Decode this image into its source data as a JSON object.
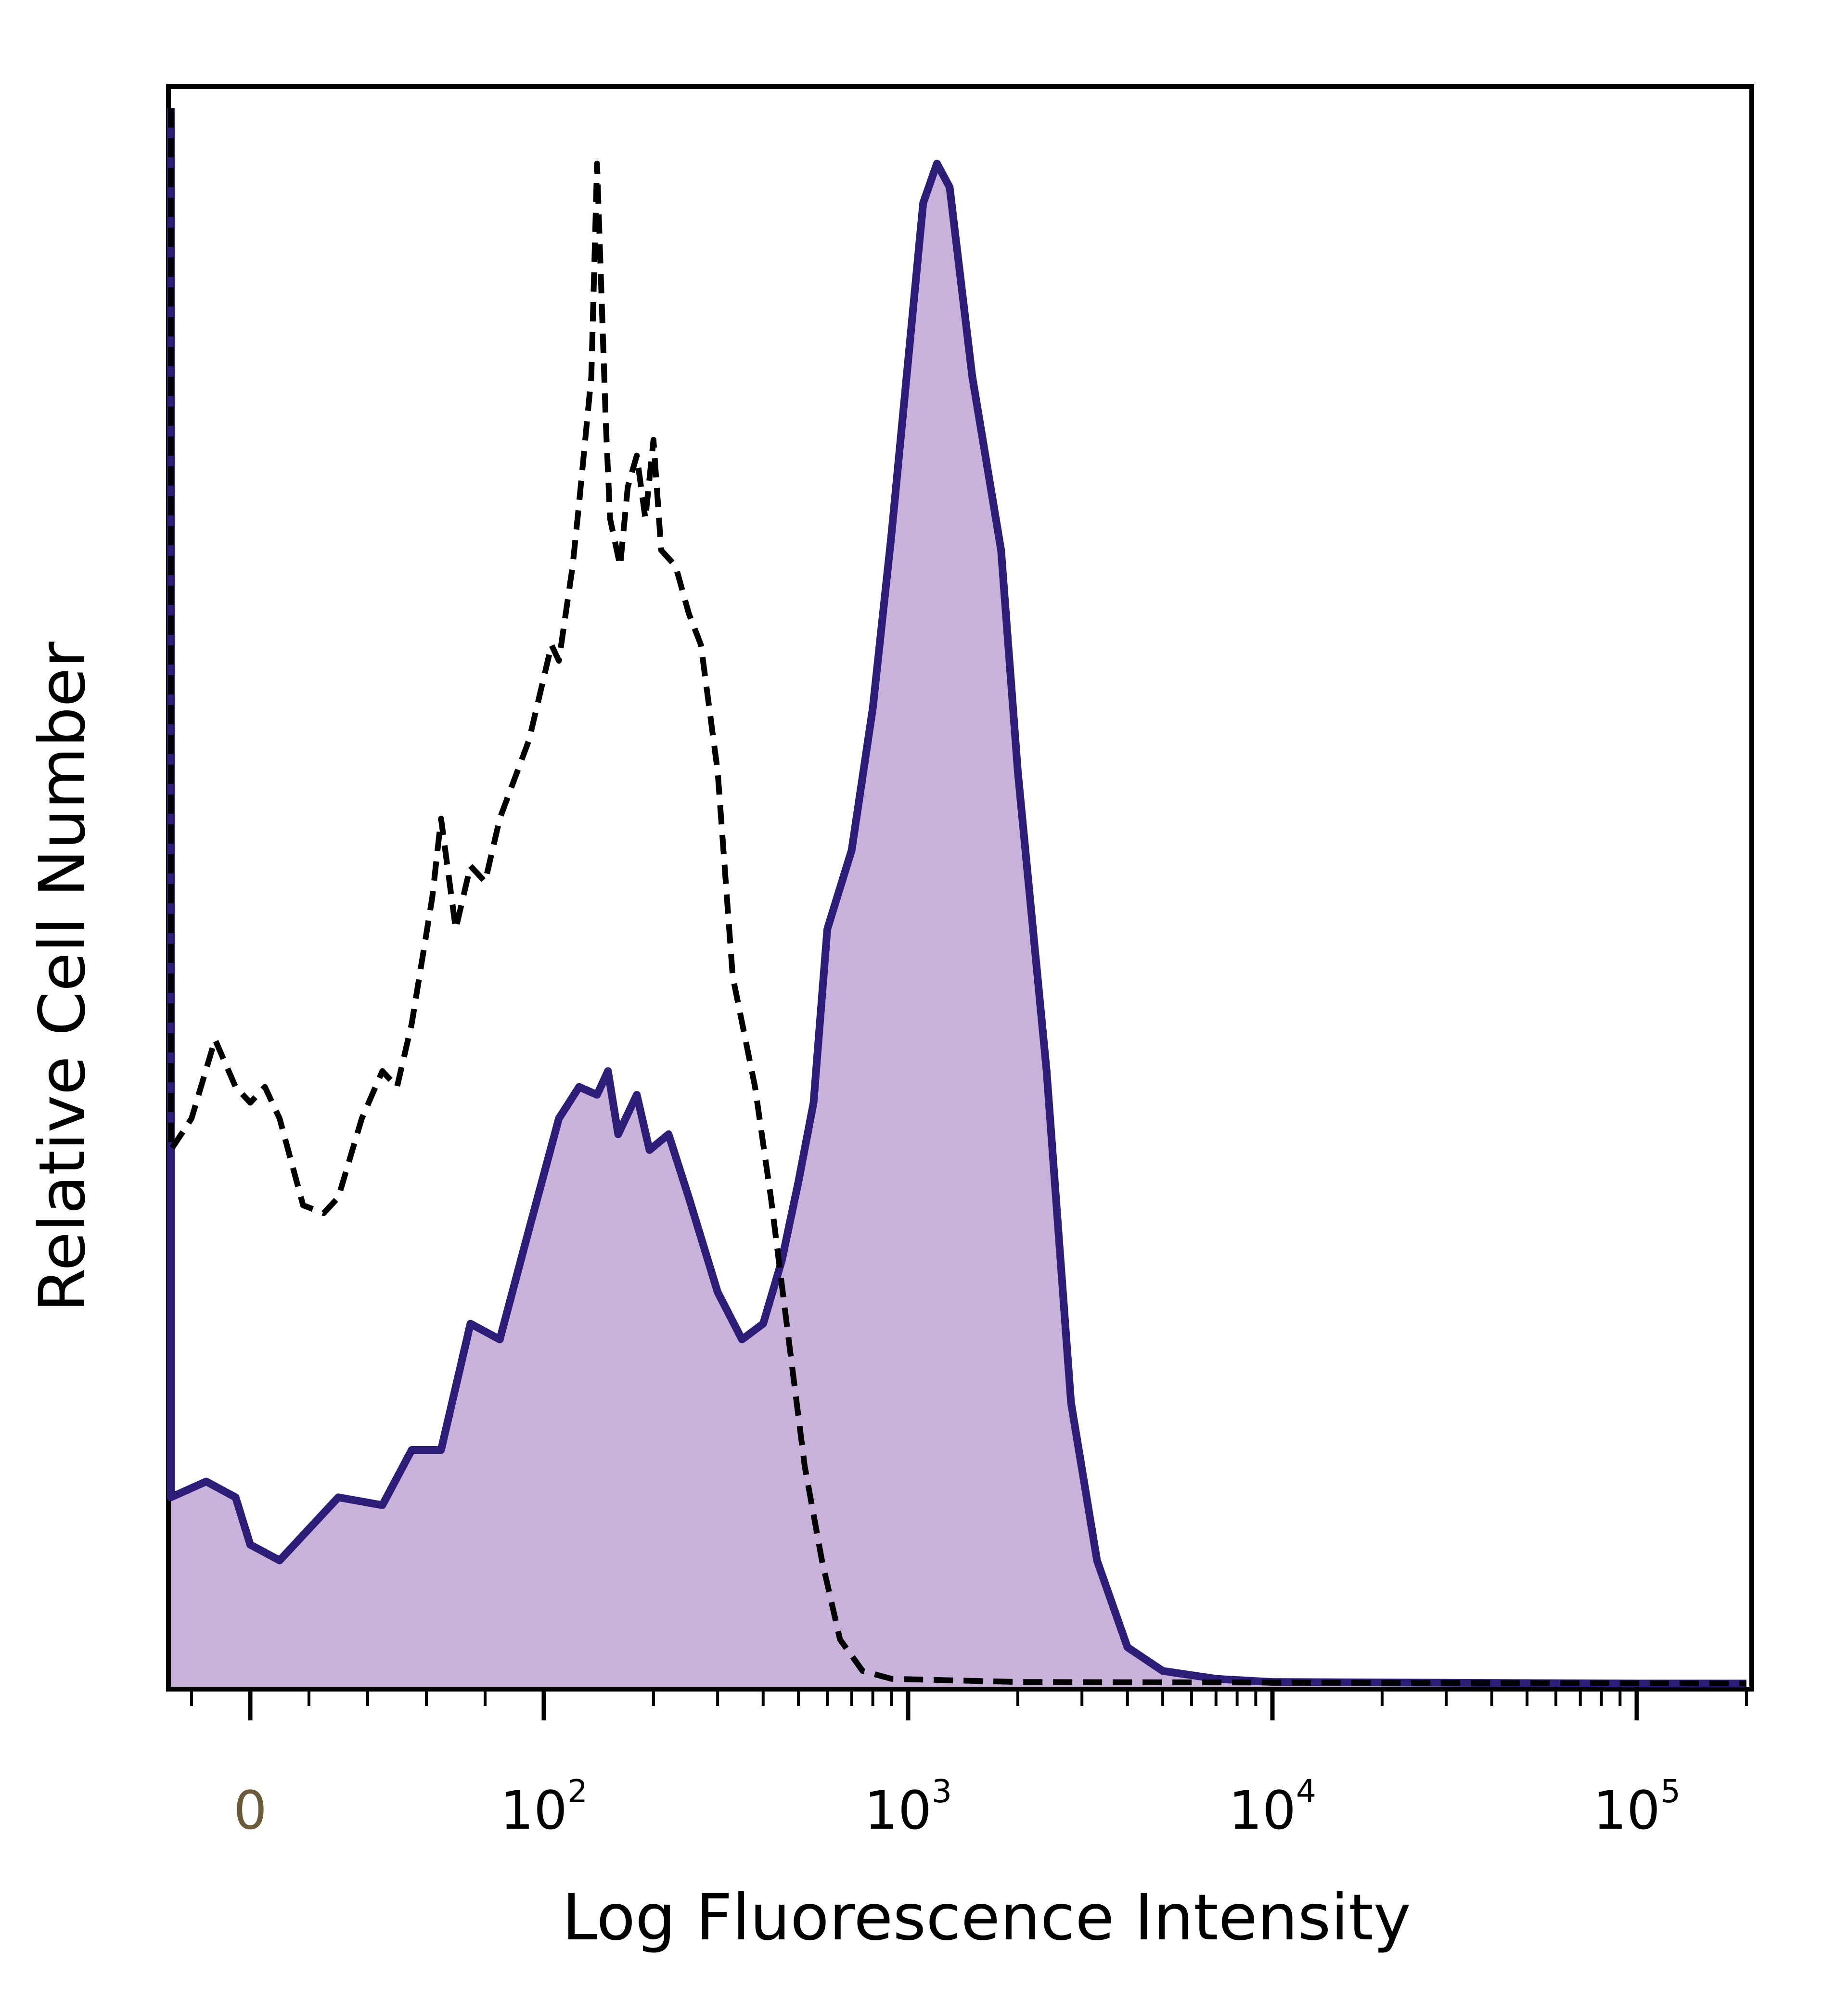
{
  "chart_data": {
    "type": "area",
    "xlabel": "Log Fluorescence Intensity",
    "ylabel": "Relative Cell Number",
    "x_scale": "biexponential",
    "x_ticks": [
      {
        "value": 0,
        "base": "0",
        "exp": ""
      },
      {
        "value": 100,
        "base": "10",
        "exp": "2"
      },
      {
        "value": 1000,
        "base": "10",
        "exp": "3"
      },
      {
        "value": 10000,
        "base": "10",
        "exp": "4"
      },
      {
        "value": 100000,
        "base": "10",
        "exp": "5"
      }
    ],
    "ylim": [
      0,
      100
    ],
    "grid": false,
    "series": [
      {
        "style": "filled-solid",
        "fill_color": "#c9b2d9",
        "line_color": "#2e1d78",
        "points": [
          [
            -30,
            100
          ],
          [
            -28,
            12
          ],
          [
            -15,
            13
          ],
          [
            -5,
            12
          ],
          [
            0,
            9
          ],
          [
            10,
            8
          ],
          [
            20,
            10
          ],
          [
            30,
            12
          ],
          [
            45,
            11.5
          ],
          [
            55,
            15
          ],
          [
            65,
            15
          ],
          [
            75,
            23
          ],
          [
            85,
            22
          ],
          [
            95,
            29
          ],
          [
            110,
            36
          ],
          [
            125,
            38
          ],
          [
            140,
            37.5
          ],
          [
            150,
            39
          ],
          [
            160,
            35
          ],
          [
            180,
            37.5
          ],
          [
            195,
            34
          ],
          [
            220,
            35
          ],
          [
            250,
            31
          ],
          [
            300,
            25
          ],
          [
            350,
            22
          ],
          [
            400,
            23
          ],
          [
            450,
            27
          ],
          [
            500,
            32
          ],
          [
            550,
            37
          ],
          [
            600,
            48
          ],
          [
            700,
            53
          ],
          [
            800,
            62
          ],
          [
            900,
            73
          ],
          [
            1000,
            84
          ],
          [
            1100,
            94
          ],
          [
            1200,
            96.5
          ],
          [
            1300,
            95
          ],
          [
            1500,
            83
          ],
          [
            1800,
            72
          ],
          [
            2000,
            58
          ],
          [
            2400,
            39
          ],
          [
            2800,
            18
          ],
          [
            3300,
            8
          ],
          [
            4000,
            2.5
          ],
          [
            5000,
            1
          ],
          [
            7000,
            0.5
          ],
          [
            10000,
            0.3
          ],
          [
            100000,
            0.2
          ],
          [
            200000,
            0.2
          ]
        ]
      },
      {
        "style": "dashed",
        "line_color": "#000000",
        "points": [
          [
            -30,
            100
          ],
          [
            -28,
            34
          ],
          [
            -20,
            36
          ],
          [
            -12,
            41
          ],
          [
            -5,
            38
          ],
          [
            0,
            37
          ],
          [
            5,
            38
          ],
          [
            10,
            36
          ],
          [
            18,
            30.5
          ],
          [
            25,
            30
          ],
          [
            30,
            31
          ],
          [
            38,
            36
          ],
          [
            45,
            39
          ],
          [
            50,
            38
          ],
          [
            55,
            42
          ],
          [
            62,
            50
          ],
          [
            65,
            55
          ],
          [
            70,
            48
          ],
          [
            75,
            52
          ],
          [
            80,
            51
          ],
          [
            85,
            55
          ],
          [
            95,
            60
          ],
          [
            105,
            66
          ],
          [
            110,
            65
          ],
          [
            120,
            71
          ],
          [
            125,
            75
          ],
          [
            135,
            83
          ],
          [
            140,
            96.5
          ],
          [
            148,
            80
          ],
          [
            152,
            74
          ],
          [
            162,
            71
          ],
          [
            170,
            76
          ],
          [
            180,
            78
          ],
          [
            190,
            74
          ],
          [
            200,
            79
          ],
          [
            210,
            72
          ],
          [
            230,
            71
          ],
          [
            250,
            68
          ],
          [
            270,
            66
          ],
          [
            300,
            58
          ],
          [
            330,
            45
          ],
          [
            380,
            38
          ],
          [
            420,
            31
          ],
          [
            470,
            22
          ],
          [
            520,
            14
          ],
          [
            580,
            8
          ],
          [
            650,
            3
          ],
          [
            750,
            1
          ],
          [
            900,
            0.5
          ],
          [
            2000,
            0.3
          ],
          [
            200000,
            0.2
          ]
        ]
      }
    ]
  }
}
